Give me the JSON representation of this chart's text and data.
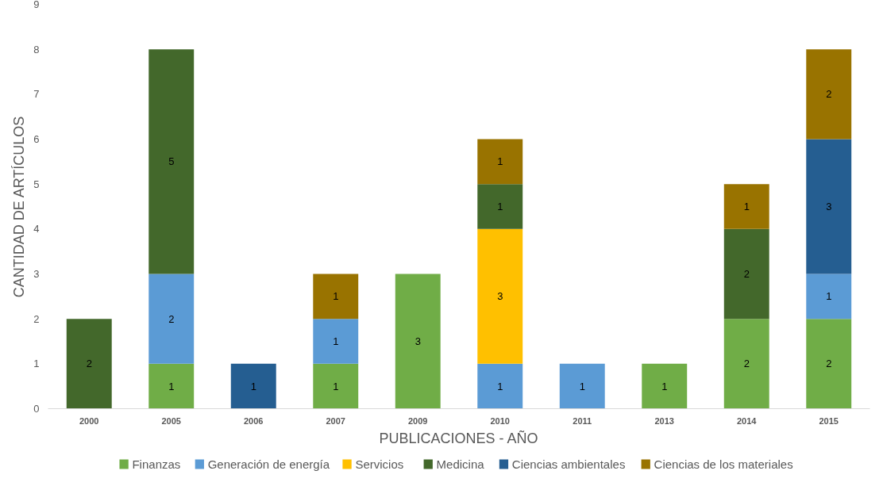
{
  "chart_data": {
    "type": "bar",
    "stacked": true,
    "xlabel": "PUBLICACIONES - AÑO",
    "ylabel": "CANTIDAD DE ARTÍCULOS",
    "categories": [
      "2000",
      "2005",
      "2006",
      "2007",
      "2009",
      "2010",
      "2011",
      "2013",
      "2014",
      "2015"
    ],
    "series": [
      {
        "name": "Finanzas",
        "color": "#70ad47",
        "values": [
          null,
          1,
          null,
          1,
          3,
          null,
          null,
          1,
          2,
          2
        ]
      },
      {
        "name": "Generación de energía",
        "color": "#5b9bd5",
        "values": [
          null,
          2,
          null,
          1,
          null,
          1,
          1,
          null,
          null,
          1
        ]
      },
      {
        "name": "Servicios",
        "color": "#ffc000",
        "values": [
          null,
          null,
          null,
          null,
          null,
          3,
          null,
          null,
          null,
          null
        ]
      },
      {
        "name": "Medicina",
        "color": "#43682b",
        "values": [
          2,
          5,
          null,
          null,
          null,
          1,
          null,
          null,
          2,
          null
        ]
      },
      {
        "name": "Ciencias ambientales",
        "color": "#255e91",
        "values": [
          null,
          null,
          1,
          null,
          null,
          null,
          null,
          null,
          null,
          3
        ]
      },
      {
        "name": "Ciencias de los materiales",
        "color": "#997300",
        "values": [
          null,
          null,
          null,
          1,
          null,
          1,
          null,
          null,
          1,
          2
        ]
      }
    ],
    "ylim": [
      0,
      9
    ],
    "yticks": [
      0,
      1,
      2,
      3,
      4,
      5,
      6,
      7,
      8,
      9
    ],
    "grid": false,
    "legend": "bottom",
    "data_labels": true
  }
}
